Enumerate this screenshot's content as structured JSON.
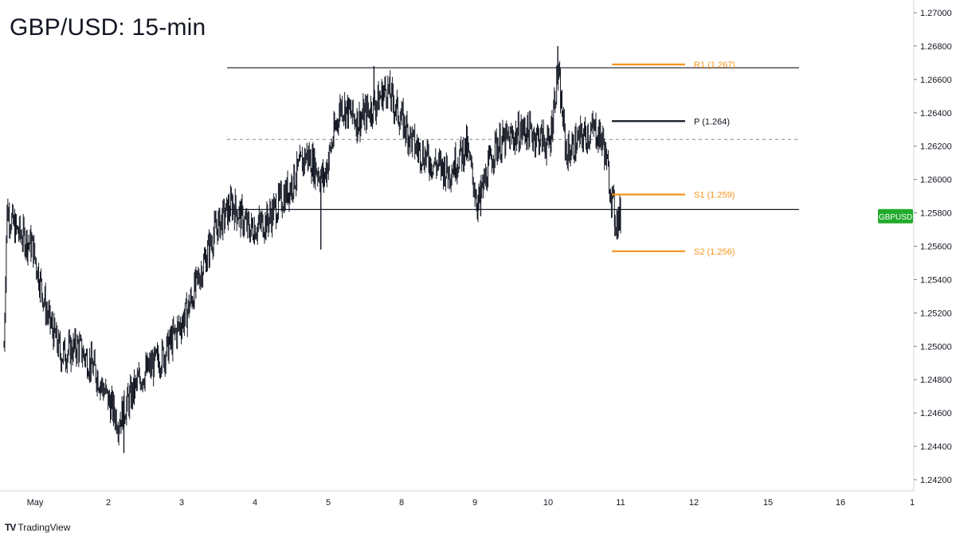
{
  "title": "GBP/USD: 15-min",
  "brand": {
    "icon": "tradingview-logo-icon",
    "mark": "TV",
    "label": "TradingView"
  },
  "colors": {
    "price": "#131722",
    "pivot_orange": "#f7931a",
    "badge_green": "#22ab2c",
    "axis": "#787b86"
  },
  "chart_data": {
    "type": "candlestick",
    "symbol_badge": "GBPUSD",
    "ylim": [
      1.242,
      1.27
    ],
    "y_ticks": [
      "1.27000",
      "1.26800",
      "1.26600",
      "1.26400",
      "1.26200",
      "1.26000",
      "1.25800",
      "1.25600",
      "1.25400",
      "1.25200",
      "1.25000",
      "1.24800",
      "1.24600",
      "1.24400",
      "1.24200"
    ],
    "x_ticks": [
      "May",
      "2",
      "3",
      "4",
      "5",
      "8",
      "9",
      "10",
      "11",
      "12",
      "15",
      "16",
      "1"
    ],
    "last_price": 1.2578,
    "price_path": [
      {
        "t": 0.0,
        "p": 1.25
      },
      {
        "t": 0.05,
        "p": 1.2582
      },
      {
        "t": 0.2,
        "p": 1.257
      },
      {
        "t": 0.5,
        "p": 1.256
      },
      {
        "t": 0.75,
        "p": 1.252
      },
      {
        "t": 1.0,
        "p": 1.2495
      },
      {
        "t": 1.3,
        "p": 1.25
      },
      {
        "t": 1.6,
        "p": 1.2485
      },
      {
        "t": 1.8,
        "p": 1.247
      },
      {
        "t": 2.0,
        "p": 1.2455
      },
      {
        "t": 2.4,
        "p": 1.2482
      },
      {
        "t": 2.8,
        "p": 1.2495
      },
      {
        "t": 3.2,
        "p": 1.252
      },
      {
        "t": 3.5,
        "p": 1.255
      },
      {
        "t": 3.7,
        "p": 1.257
      },
      {
        "t": 4.0,
        "p": 1.2585
      },
      {
        "t": 4.3,
        "p": 1.257
      },
      {
        "t": 4.6,
        "p": 1.2575
      },
      {
        "t": 5.0,
        "p": 1.2595
      },
      {
        "t": 5.3,
        "p": 1.2615
      },
      {
        "t": 5.6,
        "p": 1.26
      },
      {
        "t": 5.9,
        "p": 1.2645
      },
      {
        "t": 6.2,
        "p": 1.2635
      },
      {
        "t": 6.5,
        "p": 1.2645
      },
      {
        "t": 6.7,
        "p": 1.2655
      },
      {
        "t": 6.9,
        "p": 1.264
      },
      {
        "t": 7.2,
        "p": 1.262
      },
      {
        "t": 7.5,
        "p": 1.261
      },
      {
        "t": 7.8,
        "p": 1.2605
      },
      {
        "t": 8.1,
        "p": 1.262
      },
      {
        "t": 8.3,
        "p": 1.2585
      },
      {
        "t": 8.6,
        "p": 1.262
      },
      {
        "t": 8.9,
        "p": 1.2625
      },
      {
        "t": 9.1,
        "p": 1.263
      },
      {
        "t": 9.4,
        "p": 1.2625
      },
      {
        "t": 9.55,
        "p": 1.262
      },
      {
        "t": 9.7,
        "p": 1.2665
      },
      {
        "t": 9.85,
        "p": 1.2615
      },
      {
        "t": 10.1,
        "p": 1.2625
      },
      {
        "t": 10.35,
        "p": 1.263
      },
      {
        "t": 10.5,
        "p": 1.2622
      },
      {
        "t": 10.62,
        "p": 1.2595
      },
      {
        "t": 10.72,
        "p": 1.2575
      },
      {
        "t": 10.8,
        "p": 1.2578
      }
    ],
    "highs_lows": [
      {
        "t": 2.1,
        "low": 1.2436
      },
      {
        "t": 5.55,
        "low": 1.2558
      },
      {
        "t": 6.48,
        "high": 1.2668
      },
      {
        "t": 8.35,
        "low": 1.2578
      },
      {
        "t": 9.7,
        "high": 1.268
      },
      {
        "t": 10.7,
        "low": 1.2566
      }
    ],
    "levels": [
      {
        "name": "resistance-line",
        "value": 1.2667,
        "style": "solid",
        "color": "#131722"
      },
      {
        "name": "midline",
        "value": 1.2624,
        "style": "dashed",
        "color": "#9598a1"
      },
      {
        "name": "support-line",
        "value": 1.2582,
        "style": "solid",
        "color": "#131722"
      }
    ],
    "pivots": [
      {
        "label": "R1 (1.267)",
        "value": 1.2669,
        "color": "#f7931a"
      },
      {
        "label": "P (1.264)",
        "value": 1.2635,
        "color": "#131722"
      },
      {
        "label": "S1 (1.259)",
        "value": 1.2591,
        "color": "#f7931a"
      },
      {
        "label": "S2 (1.256)",
        "value": 1.2557,
        "color": "#f7931a"
      }
    ]
  }
}
